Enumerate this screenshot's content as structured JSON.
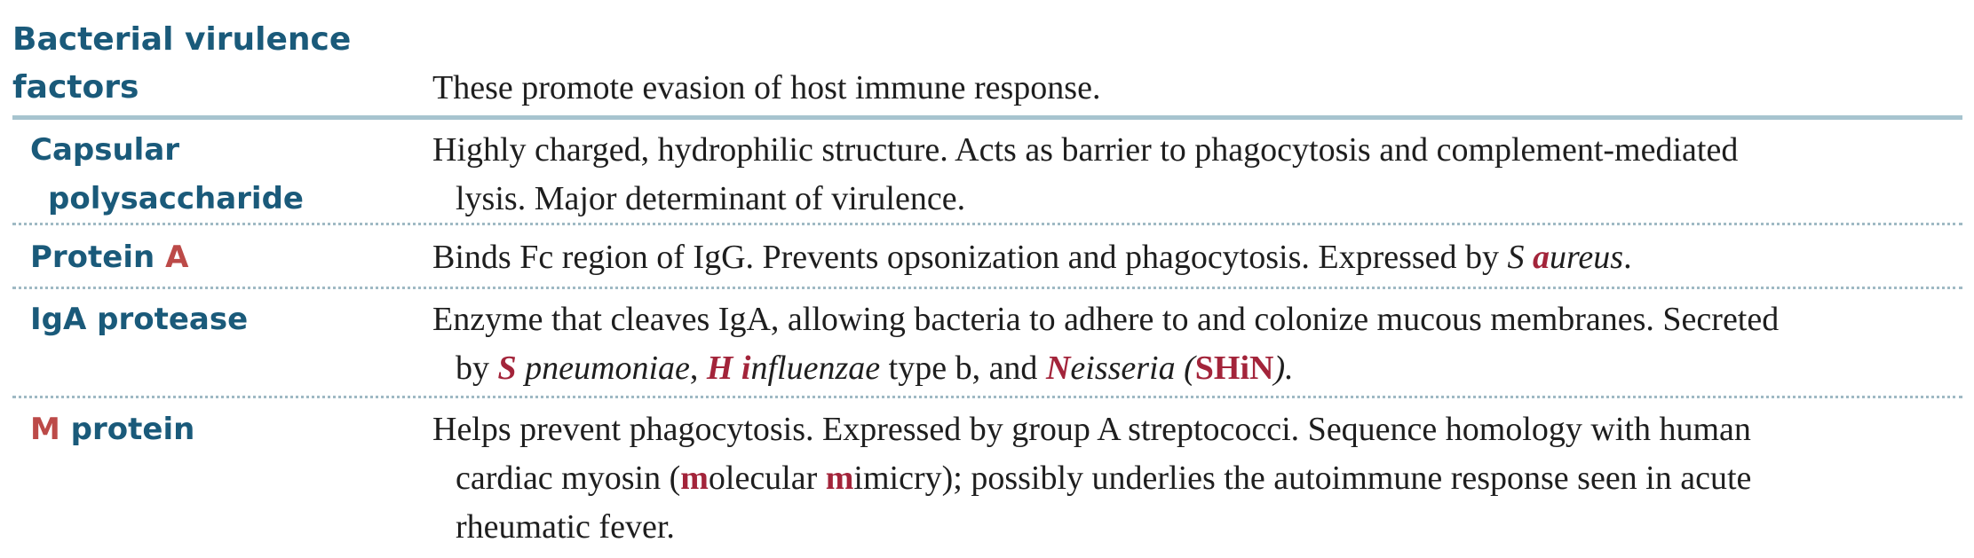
{
  "title": {
    "line1": "Bacterial virulence",
    "line2": "factors"
  },
  "intro": "These promote evasion of host immune response.",
  "rows": [
    {
      "term_line1": "Capsular",
      "term_line2": "polysaccharide",
      "desc_line1": "Highly charged, hydrophilic structure. Acts as barrier to phagocytosis and complement-mediated",
      "desc_line2": "lysis. Major determinant of virulence."
    },
    {
      "term_a": "Protein ",
      "term_b": "A",
      "desc_a": "Binds Fc region of IgG. Prevents opsonization and phagocytosis. Expressed by ",
      "desc_b": "S ",
      "desc_c": "a",
      "desc_d": "ureus",
      "desc_e": "."
    },
    {
      "term": "IgA protease",
      "desc_line1": "Enzyme that cleaves IgA, allowing bacteria to adhere to and colonize mucous membranes. Secreted",
      "l2_a": "by ",
      "l2_b": "S",
      "l2_c": " pneumoniae",
      "l2_d": ", ",
      "l2_e": "H i",
      "l2_f": "nfluenzae",
      "l2_g": " type b, and ",
      "l2_h": "N",
      "l2_i": "eisseria",
      "l2_j": " (",
      "l2_k": "SHiN",
      "l2_l": ")."
    },
    {
      "term_a": "M",
      "term_b": " protein",
      "desc_line1": "Helps prevent phagocytosis. Expressed by group A streptococci. Sequence homology with human",
      "l2_a": "cardiac myosin (",
      "l2_b": "m",
      "l2_c": "olecular ",
      "l2_d": "m",
      "l2_e": "imicry); possibly underlies the autoimmune response seen in acute",
      "desc_line3": "rheumatic fever."
    }
  ],
  "colors": {
    "heading": "#1a5a7a",
    "term_highlight": "#bc4a48",
    "text_highlight": "#a3243a",
    "rule": "#a7c4cf"
  }
}
